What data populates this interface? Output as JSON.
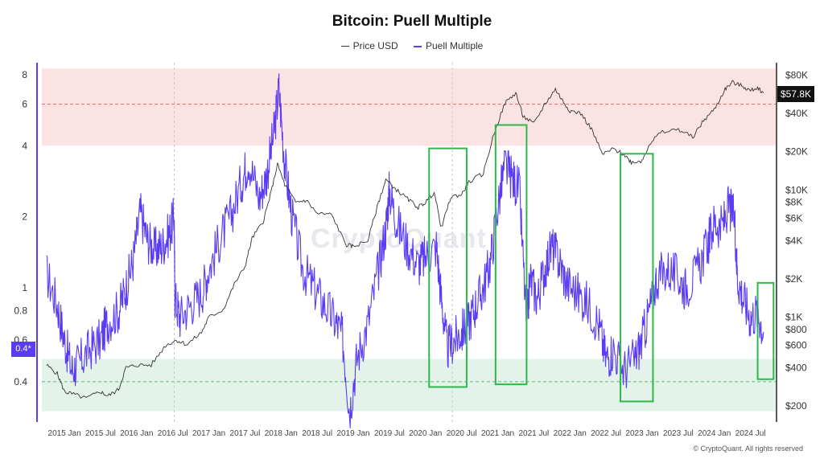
{
  "chart_data": {
    "type": "line",
    "title": "Bitcoin: Puell Multiple",
    "legend": [
      {
        "name": "Price USD",
        "color": "#333333"
      },
      {
        "name": "Puell Multiple",
        "color": "#5b3cf4"
      }
    ],
    "x_ticks": [
      "2015 Jan",
      "2015 Jul",
      "2016 Jan",
      "2016 Jul",
      "2017 Jan",
      "2017 Jul",
      "2018 Jan",
      "2018 Jul",
      "2019 Jan",
      "2019 Jul",
      "2020 Jan",
      "2020 Jul",
      "2021 Jan",
      "2021 Jul",
      "2022 Jan",
      "2022 Jul",
      "2023 Jan",
      "2023 Jul",
      "2024 Jan",
      "2024 Jul"
    ],
    "left_axis": {
      "scale": "log",
      "ticks": [
        0.4,
        0.6,
        0.8,
        1,
        2,
        4,
        6,
        8
      ]
    },
    "right_axis": {
      "scale": "log",
      "ticks": [
        "$200",
        "$400",
        "$600",
        "$800",
        "$1K",
        "$2K",
        "$4K",
        "$6K",
        "$8K",
        "$10K",
        "$20K",
        "$40K",
        "$80K"
      ]
    },
    "zones": [
      {
        "name": "overvalued",
        "range": [
          4,
          8.5
        ],
        "color": "#fbe3e3"
      },
      {
        "name": "undervalued",
        "range": [
          0.3,
          0.5
        ],
        "color": "#e4f3ea"
      }
    ],
    "reference_lines": [
      {
        "axis": "left",
        "value": 6,
        "color": "#e06a6a"
      },
      {
        "axis": "left",
        "value": 0.4,
        "color": "#62b87a"
      }
    ],
    "series": [
      {
        "name": "Puell Multiple",
        "axis": "left",
        "color": "#5b3cf4",
        "points": [
          [
            2014.75,
            1.15
          ],
          [
            2014.9,
            0.85
          ],
          [
            2015.0,
            0.6
          ],
          [
            2015.1,
            0.45
          ],
          [
            2015.2,
            0.48
          ],
          [
            2015.35,
            0.55
          ],
          [
            2015.5,
            0.6
          ],
          [
            2015.6,
            0.72
          ],
          [
            2015.75,
            0.8
          ],
          [
            2015.85,
            1.0
          ],
          [
            2015.95,
            1.3
          ],
          [
            2016.05,
            2.1
          ],
          [
            2016.15,
            1.6
          ],
          [
            2016.25,
            1.45
          ],
          [
            2016.35,
            1.5
          ],
          [
            2016.45,
            1.7
          ],
          [
            2016.52,
            2.0
          ],
          [
            2016.53,
            0.9
          ],
          [
            2016.6,
            0.75
          ],
          [
            2016.75,
            0.85
          ],
          [
            2016.9,
            0.95
          ],
          [
            2017.0,
            1.2
          ],
          [
            2017.15,
            1.6
          ],
          [
            2017.3,
            2.0
          ],
          [
            2017.45,
            2.8
          ],
          [
            2017.55,
            3.5
          ],
          [
            2017.7,
            2.4
          ],
          [
            2017.8,
            3.0
          ],
          [
            2017.9,
            4.5
          ],
          [
            2017.97,
            7.0
          ],
          [
            2018.05,
            3.4
          ],
          [
            2018.15,
            2.0
          ],
          [
            2018.3,
            1.2
          ],
          [
            2018.45,
            1.0
          ],
          [
            2018.6,
            0.85
          ],
          [
            2018.75,
            0.72
          ],
          [
            2018.85,
            0.62
          ],
          [
            2018.95,
            0.3
          ],
          [
            2019.05,
            0.5
          ],
          [
            2019.2,
            0.7
          ],
          [
            2019.35,
            1.2
          ],
          [
            2019.45,
            1.8
          ],
          [
            2019.5,
            2.6
          ],
          [
            2019.6,
            1.9
          ],
          [
            2019.75,
            1.5
          ],
          [
            2019.9,
            1.25
          ],
          [
            2020.0,
            1.35
          ],
          [
            2020.15,
            1.5
          ],
          [
            2020.22,
            0.9
          ],
          [
            2020.3,
            0.55
          ],
          [
            2020.4,
            0.6
          ],
          [
            2020.5,
            0.65
          ],
          [
            2020.6,
            0.72
          ],
          [
            2020.7,
            0.85
          ],
          [
            2020.8,
            1.0
          ],
          [
            2020.9,
            1.3
          ],
          [
            2021.0,
            2.2
          ],
          [
            2021.1,
            3.3
          ],
          [
            2021.2,
            2.9
          ],
          [
            2021.3,
            2.6
          ],
          [
            2021.4,
            0.7
          ],
          [
            2021.45,
            1.1
          ],
          [
            2021.55,
            0.9
          ],
          [
            2021.65,
            1.2
          ],
          [
            2021.75,
            1.5
          ],
          [
            2021.85,
            1.3
          ],
          [
            2021.95,
            1.05
          ],
          [
            2022.1,
            0.95
          ],
          [
            2022.25,
            0.85
          ],
          [
            2022.4,
            0.7
          ],
          [
            2022.5,
            0.5
          ],
          [
            2022.6,
            0.55
          ],
          [
            2022.75,
            0.45
          ],
          [
            2022.9,
            0.5
          ],
          [
            2023.0,
            0.6
          ],
          [
            2023.1,
            0.8
          ],
          [
            2023.2,
            1.1
          ],
          [
            2023.35,
            1.2
          ],
          [
            2023.5,
            1.1
          ],
          [
            2023.6,
            1.0
          ],
          [
            2023.75,
            1.15
          ],
          [
            2023.9,
            1.5
          ],
          [
            2024.0,
            1.9
          ],
          [
            2024.1,
            1.8
          ],
          [
            2024.2,
            2.2
          ],
          [
            2024.28,
            2.0
          ],
          [
            2024.32,
            1.1
          ],
          [
            2024.4,
            0.9
          ],
          [
            2024.5,
            0.75
          ],
          [
            2024.6,
            0.8
          ],
          [
            2024.68,
            0.65
          ]
        ]
      },
      {
        "name": "Price USD",
        "axis": "right",
        "color": "#333333",
        "points": [
          [
            2014.75,
            420
          ],
          [
            2014.9,
            360
          ],
          [
            2015.0,
            260
          ],
          [
            2015.1,
            250
          ],
          [
            2015.3,
            230
          ],
          [
            2015.5,
            260
          ],
          [
            2015.6,
            240
          ],
          [
            2015.75,
            270
          ],
          [
            2015.85,
            400
          ],
          [
            2016.0,
            420
          ],
          [
            2016.2,
            420
          ],
          [
            2016.4,
            600
          ],
          [
            2016.55,
            660
          ],
          [
            2016.7,
            610
          ],
          [
            2016.9,
            760
          ],
          [
            2017.0,
            1000
          ],
          [
            2017.2,
            1150
          ],
          [
            2017.35,
            1800
          ],
          [
            2017.5,
            2500
          ],
          [
            2017.6,
            4200
          ],
          [
            2017.75,
            5600
          ],
          [
            2017.85,
            9000
          ],
          [
            2017.95,
            16000
          ],
          [
            2018.05,
            11000
          ],
          [
            2018.2,
            8000
          ],
          [
            2018.35,
            8300
          ],
          [
            2018.5,
            6500
          ],
          [
            2018.7,
            6400
          ],
          [
            2018.9,
            3700
          ],
          [
            2019.0,
            3600
          ],
          [
            2019.2,
            4000
          ],
          [
            2019.35,
            8000
          ],
          [
            2019.45,
            12000
          ],
          [
            2019.6,
            10000
          ],
          [
            2019.75,
            8500
          ],
          [
            2019.9,
            7300
          ],
          [
            2020.0,
            8000
          ],
          [
            2020.12,
            9600
          ],
          [
            2020.22,
            5000
          ],
          [
            2020.35,
            8800
          ],
          [
            2020.5,
            9200
          ],
          [
            2020.6,
            11500
          ],
          [
            2020.8,
            13500
          ],
          [
            2020.95,
            28000
          ],
          [
            2021.1,
            48000
          ],
          [
            2021.25,
            58000
          ],
          [
            2021.35,
            38000
          ],
          [
            2021.5,
            33000
          ],
          [
            2021.65,
            47000
          ],
          [
            2021.8,
            62000
          ],
          [
            2021.9,
            50000
          ],
          [
            2022.0,
            42000
          ],
          [
            2022.15,
            40000
          ],
          [
            2022.3,
            30000
          ],
          [
            2022.45,
            19000
          ],
          [
            2022.6,
            21000
          ],
          [
            2022.75,
            19000
          ],
          [
            2022.85,
            16500
          ],
          [
            2023.0,
            17000
          ],
          [
            2023.1,
            23000
          ],
          [
            2023.25,
            28000
          ],
          [
            2023.5,
            30000
          ],
          [
            2023.7,
            26000
          ],
          [
            2023.85,
            35000
          ],
          [
            2024.0,
            43000
          ],
          [
            2024.15,
            62000
          ],
          [
            2024.25,
            70000
          ],
          [
            2024.4,
            65000
          ],
          [
            2024.5,
            60000
          ],
          [
            2024.6,
            64000
          ],
          [
            2024.68,
            57800
          ]
        ]
      }
    ],
    "highlight_boxes": [
      {
        "x": [
          2020.05,
          2020.57
        ],
        "y": [
          0.38,
          3.9
        ],
        "color": "#2fb84a"
      },
      {
        "x": [
          2020.97,
          2021.4
        ],
        "y": [
          0.39,
          4.9
        ],
        "color": "#2fb84a"
      },
      {
        "x": [
          2022.7,
          2023.15
        ],
        "y": [
          0.33,
          3.7
        ],
        "color": "#2fb84a"
      },
      {
        "x": [
          2024.6,
          2024.82
        ],
        "y": [
          0.41,
          1.05
        ],
        "color": "#2fb84a"
      }
    ],
    "vertical_markers": [
      2016.52,
      2020.37
    ],
    "last_price_label": "$57.8K",
    "left_marker_label": "0.4*"
  },
  "watermark": "CryptoQuant",
  "credit": "© CryptoQuant. All rights reserved"
}
